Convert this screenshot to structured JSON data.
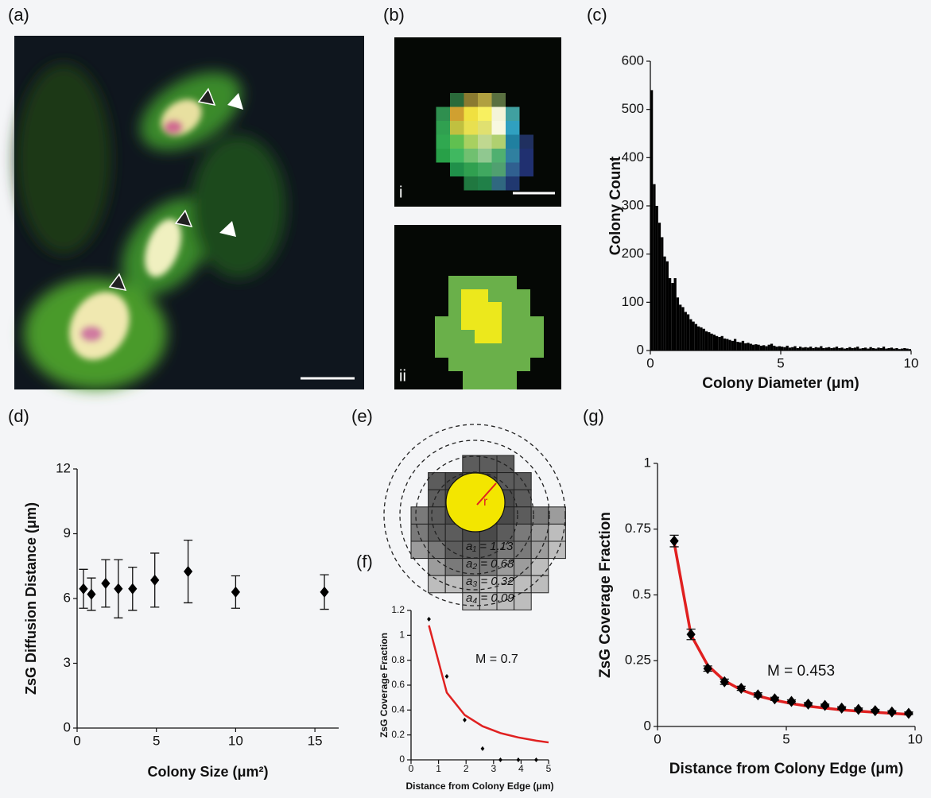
{
  "figure_labels": [
    "(a)",
    "(b)",
    "(e)"
  ],
  "image_b": {
    "labels": [
      "i",
      "ii"
    ]
  },
  "diagram_e": {
    "radius_label": "r",
    "areas": [
      "a₁ = 1.13",
      "a₂ = 0.68",
      "a₃ = 0.32",
      "a₄ = 0.09"
    ]
  },
  "chart_data": [
    {
      "type": "histogram",
      "panel_label": "(c)",
      "x_label": "Colony Diameter (μm)",
      "y_label": "Colony Count",
      "color": "#000000",
      "bins": [
        0,
        0.1,
        0.2,
        0.3,
        0.4,
        0.5,
        0.6,
        0.7,
        0.8,
        0.9,
        1,
        1.1,
        1.2,
        1.3,
        1.4,
        1.5,
        1.6,
        1.7,
        1.8,
        1.9,
        2,
        2.1,
        2.2,
        2.3,
        2.4,
        2.5,
        2.6,
        2.7,
        2.8,
        2.9,
        3,
        3.1,
        3.2,
        3.3,
        3.4,
        3.5,
        3.6,
        3.7,
        3.8,
        3.9,
        4,
        4.1,
        4.2,
        4.3,
        4.4,
        4.5,
        4.6,
        4.7,
        4.8,
        4.9,
        5,
        5.1,
        5.2,
        5.3,
        5.4,
        5.5,
        5.6,
        5.7,
        5.8,
        5.9,
        6,
        6.1,
        6.2,
        6.3,
        6.4,
        6.5,
        6.6,
        6.7,
        6.8,
        6.9,
        7,
        7.1,
        7.2,
        7.3,
        7.4,
        7.5,
        7.6,
        7.7,
        7.8,
        7.9,
        8,
        8.1,
        8.2,
        8.3,
        8.4,
        8.5,
        8.6,
        8.7,
        8.8,
        8.9,
        9,
        9.1,
        9.2,
        9.3,
        9.4,
        9.5,
        9.6,
        9.7,
        9.8,
        9.9,
        10
      ],
      "values": [
        540,
        345,
        300,
        265,
        235,
        195,
        185,
        150,
        140,
        150,
        110,
        95,
        90,
        80,
        75,
        65,
        60,
        55,
        50,
        48,
        45,
        40,
        38,
        35,
        33,
        30,
        28,
        30,
        25,
        24,
        22,
        20,
        24,
        18,
        17,
        20,
        15,
        16,
        14,
        12,
        13,
        12,
        10,
        11,
        9,
        12,
        14,
        10,
        8,
        9,
        8,
        7,
        10,
        6,
        7,
        9,
        5,
        8,
        6,
        7,
        6,
        8,
        5,
        7,
        6,
        9,
        5,
        6,
        7,
        5,
        6,
        8,
        5,
        6,
        4,
        5,
        7,
        5,
        6,
        8,
        4,
        5,
        6,
        4,
        7,
        5,
        4,
        6,
        5,
        8,
        4,
        5,
        6,
        4,
        5,
        3,
        4,
        5,
        4,
        3
      ],
      "xlim": [
        0,
        10
      ],
      "xticks": [
        0,
        5,
        10
      ],
      "ylim": [
        0,
        600
      ],
      "yticks": [
        0,
        100,
        200,
        300,
        400,
        500,
        600
      ]
    },
    {
      "type": "scatter",
      "panel_label": "(d)",
      "x_label": "Colony Size (μm²)",
      "y_label": "ZsG Diffusion Distance (μm)",
      "color": "#000000",
      "x": [
        0.4,
        0.9,
        1.8,
        2.6,
        3.5,
        4.9,
        7,
        10,
        15.6
      ],
      "values": [
        6.45,
        6.2,
        6.7,
        6.45,
        6.45,
        6.85,
        7.25,
        6.3,
        6.3
      ],
      "errors": [
        0.9,
        0.75,
        1.1,
        1.35,
        1.0,
        1.25,
        1.45,
        0.75,
        0.8
      ],
      "xlim": [
        0,
        16.5
      ],
      "xticks": [
        0,
        5,
        10,
        15
      ],
      "ylim": [
        0,
        12
      ],
      "yticks": [
        0,
        3,
        6,
        9,
        12
      ]
    },
    {
      "type": "scatter",
      "panel_label": "(f)",
      "x_label": "Distance from Colony Edge (μm)",
      "y_label": "ZsG Coverage Fraction",
      "color": "#000000",
      "annotation": "M = 0.7",
      "x": [
        0.65,
        1.3,
        1.95,
        2.6,
        3.25,
        3.9,
        4.55
      ],
      "values": [
        1.13,
        0.67,
        0.32,
        0.09,
        0,
        0,
        0
      ],
      "fit": {
        "color": "#e02020",
        "x": [
          0.65,
          1.3,
          1.95,
          2.6,
          3.25,
          3.9,
          4.55,
          5
        ],
        "values": [
          1.08,
          0.54,
          0.36,
          0.27,
          0.215,
          0.18,
          0.154,
          0.14
        ]
      },
      "xlim": [
        0,
        5
      ],
      "xticks": [
        0,
        1,
        2,
        3,
        4,
        5
      ],
      "ylim": [
        0,
        1.2
      ],
      "yticks": [
        0,
        0.2,
        0.4,
        0.6,
        0.8,
        1,
        1.2
      ]
    },
    {
      "type": "scatter",
      "panel_label": "(g)",
      "x_label": "Distance from Colony Edge (μm)",
      "y_label": "ZsG Coverage Fraction",
      "color": "#000000",
      "annotation": "M = 0.453",
      "x": [
        0.65,
        1.3,
        1.95,
        2.6,
        3.25,
        3.9,
        4.55,
        5.2,
        5.85,
        6.5,
        7.15,
        7.8,
        8.45,
        9.1,
        9.75
      ],
      "values": [
        0.705,
        0.35,
        0.22,
        0.17,
        0.145,
        0.12,
        0.105,
        0.095,
        0.085,
        0.08,
        0.07,
        0.065,
        0.06,
        0.055,
        0.05
      ],
      "errors": [
        0.022,
        0.02,
        0.01,
        0.01,
        0.008,
        0.008,
        0.006,
        0.006,
        0.006,
        0.005,
        0.005,
        0.005,
        0.005,
        0.005,
        0.005
      ],
      "fit": {
        "color": "#e02020",
        "x": [
          0.65,
          1.3,
          1.95,
          2.6,
          3.25,
          3.9,
          4.55,
          5.2,
          5.85,
          6.5,
          7.15,
          7.8,
          8.45,
          9.1,
          9.75
        ],
        "values": [
          0.697,
          0.348,
          0.232,
          0.174,
          0.139,
          0.116,
          0.1,
          0.087,
          0.077,
          0.07,
          0.063,
          0.058,
          0.054,
          0.05,
          0.046
        ]
      },
      "xlim": [
        0,
        10
      ],
      "xticks": [
        0,
        5,
        10
      ],
      "ylim": [
        0,
        1
      ],
      "yticks": [
        0,
        0.25,
        0.5,
        0.75,
        1
      ]
    }
  ]
}
